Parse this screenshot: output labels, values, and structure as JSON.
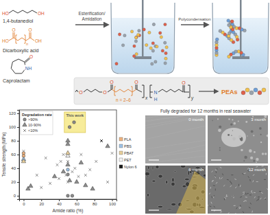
{
  "scheme": {
    "monomers": [
      {
        "name": "1,4-butanediol",
        "atoms": [
          "HO",
          "OH"
        ]
      },
      {
        "name": "Dicarboxylic acid",
        "atoms": [
          "HO",
          "OH",
          "O",
          "O",
          "n"
        ]
      },
      {
        "name": "Caprolactam",
        "atoms": [
          "NH",
          "O"
        ]
      }
    ],
    "steps": [
      {
        "lines": [
          "Esterification/",
          "Amidation"
        ]
      },
      {
        "lines": [
          "Polycondensation"
        ]
      }
    ],
    "polymer": {
      "atoms": [
        "O",
        "O",
        "O",
        "O",
        "N",
        "H",
        "O"
      ],
      "repeat": "n = 2–6",
      "subscripts": [
        "x",
        "y"
      ],
      "name": "PEAs"
    }
  },
  "chart_data": {
    "type": "scatter",
    "xlabel": "Amide ratio (%)",
    "ylabel": "Tensile strength (MPa)",
    "xlim": [
      -5,
      105
    ],
    "ylim": [
      -5,
      125
    ],
    "xticks": [
      0,
      20,
      40,
      60,
      80,
      100
    ],
    "yticks": [
      0,
      20,
      40,
      60,
      80,
      100,
      120
    ],
    "legend": "upper left",
    "legend_title": "Degradation rate",
    "series": [
      {
        "name": ">90%",
        "marker": "circle",
        "x": [
          0,
          0,
          50,
          50,
          50,
          55,
          52,
          57
        ],
        "values": [
          62,
          58,
          0,
          31,
          38,
          0,
          100,
          107
        ],
        "colors": [
          "#f0b37e",
          "#f0b37e",
          "#8c8c8c",
          "#8c8c8c",
          "#9fc3e6",
          "#8c8c8c",
          "#8c8c8c",
          "#8c8c8c"
        ]
      },
      {
        "name": "10-90%",
        "marker": "triangle",
        "x": [
          0,
          0,
          5,
          8,
          35,
          50,
          50,
          50,
          50,
          50,
          45,
          52,
          60,
          70,
          65,
          95,
          78
        ],
        "values": [
          53,
          50,
          10,
          14,
          28,
          45,
          58,
          62,
          75,
          80,
          35,
          22,
          20,
          15,
          48,
          72,
          10
        ],
        "colors": [
          "#9fc3e6",
          "#e8cf9a",
          "#8c8c8c",
          "#8c8c8c",
          "#8c8c8c",
          "#8c8c8c",
          "#f2f2f2",
          "#e8cf9a",
          "#8c8c8c",
          "#8c8c8c",
          "#8c8c8c",
          "#8c8c8c",
          "#8c8c8c",
          "#8c8c8c",
          "#8c8c8c",
          "#8c8c8c",
          "#8c8c8c"
        ]
      },
      {
        "name": "<10%",
        "marker": "x",
        "x": [
          0,
          20,
          15,
          25,
          30,
          40,
          42,
          48,
          50,
          50,
          55,
          58,
          62,
          65,
          70,
          75,
          82,
          88,
          100,
          95,
          45,
          38
        ],
        "values": [
          65,
          12,
          30,
          55,
          18,
          25,
          50,
          30,
          20,
          50,
          35,
          40,
          28,
          60,
          30,
          38,
          50,
          80,
          62,
          20,
          60,
          45
        ],
        "colors": [
          "#8c8c8c",
          "#8c8c8c",
          "#8c8c8c",
          "#8c8c8c",
          "#8c8c8c",
          "#8c8c8c",
          "#8c8c8c",
          "#8c8c8c",
          "#8c8c8c",
          "#8c8c8c",
          "#8c8c8c",
          "#8c8c8c",
          "#8c8c8c",
          "#8c8c8c",
          "#8c8c8c",
          "#8c8c8c",
          "#8c8c8c",
          "#1a1a1a",
          "#8c8c8c",
          "#8c8c8c",
          "#8c8c8c",
          "#8c8c8c"
        ]
      }
    ],
    "materials": [
      {
        "name": "PLA",
        "color": "#f0b37e"
      },
      {
        "name": "PBS",
        "color": "#9fc3e6"
      },
      {
        "name": "PBAT",
        "color": "#e8cf9a"
      },
      {
        "name": "PET",
        "color": "#f2f2f2"
      },
      {
        "name": "Nylon 6",
        "color": "#1a1a1a"
      }
    ],
    "annotations": [
      {
        "text": "This work",
        "x": [
          46,
          70
        ],
        "y": [
          92,
          122
        ]
      }
    ]
  },
  "micrographs": {
    "title": "Fully degraded for 12 months in real seawater",
    "panels": [
      "0 month",
      "3 month",
      "6 month",
      "12 month"
    ]
  }
}
